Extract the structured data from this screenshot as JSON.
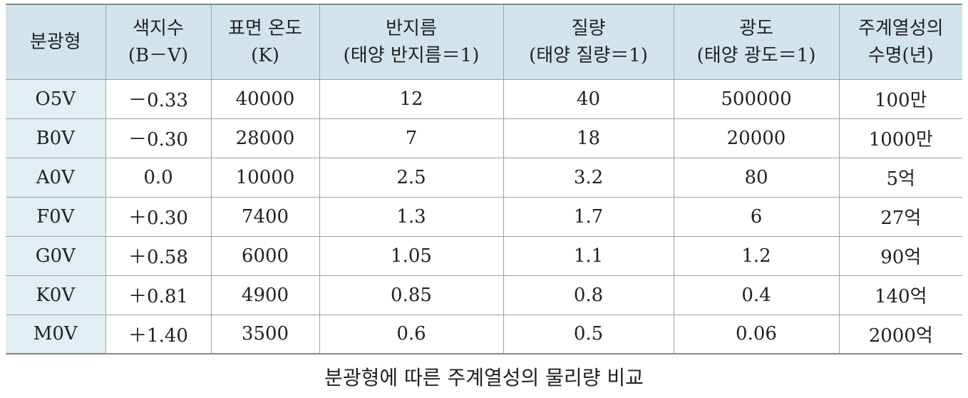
{
  "table": {
    "headers": [
      [
        "분광형"
      ],
      [
        "색지수",
        "(B－V)"
      ],
      [
        "표면 온도",
        "(K)"
      ],
      [
        "반지름",
        "(태양 반지름＝1)"
      ],
      [
        "질량",
        "(태양 질량＝1)"
      ],
      [
        "광도",
        "(태양 광도＝1)"
      ],
      [
        "주계열성의",
        "수명(년)"
      ]
    ],
    "rows": [
      [
        "O5Ⅴ",
        "－0.33",
        "40000",
        "12",
        "40",
        "500000",
        "100만"
      ],
      [
        "B0Ⅴ",
        "－0.30",
        "28000",
        "7",
        "18",
        "20000",
        "1000만"
      ],
      [
        "A0Ⅴ",
        "0.0",
        "10000",
        "2.5",
        "3.2",
        "80",
        "5억"
      ],
      [
        "F0Ⅴ",
        "＋0.30",
        "7400",
        "1.3",
        "1.7",
        "6",
        "27억"
      ],
      [
        "G0Ⅴ",
        "＋0.58",
        "6000",
        "1.05",
        "1.1",
        "1.2",
        "90억"
      ],
      [
        "K0Ⅴ",
        "＋0.81",
        "4900",
        "0.85",
        "0.8",
        "0.4",
        "140억"
      ],
      [
        "M0Ⅴ",
        "＋1.40",
        "3500",
        "0.6",
        "0.5",
        "0.06",
        "2000억"
      ]
    ]
  },
  "caption": "분광형에 따른 주계열성의 물리량 비교"
}
